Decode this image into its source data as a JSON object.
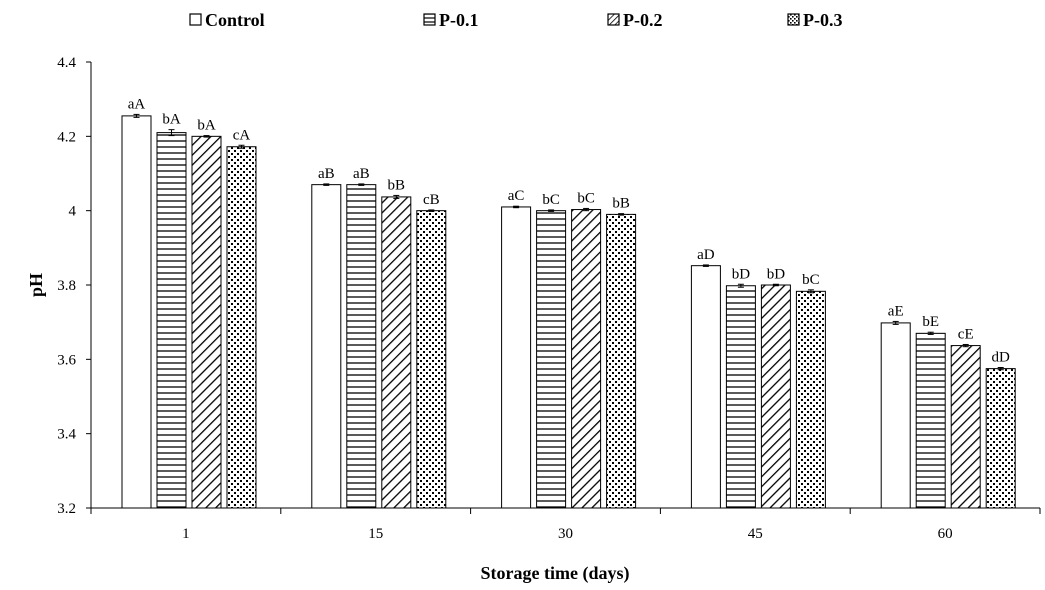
{
  "chart_data": {
    "type": "bar",
    "title": "",
    "xlabel": "Storage time (days)",
    "ylabel": "pH",
    "ylim": [
      3.2,
      4.4
    ],
    "yticks": [
      3.2,
      3.4,
      3.6,
      3.8,
      4,
      4.2,
      4.4
    ],
    "ytick_labels": [
      "3.2",
      "3.4",
      "3.6",
      "3.8",
      "4",
      "4.2",
      "4.4"
    ],
    "categories": [
      "1",
      "15",
      "30",
      "45",
      "60"
    ],
    "legend_position": "top",
    "grid": false,
    "series": [
      {
        "name": "Control",
        "pattern": "solid-white",
        "values": [
          4.255,
          4.07,
          4.01,
          3.852,
          3.698
        ],
        "errors": [
          0.004,
          0.002,
          0.002,
          0.002,
          0.004
        ],
        "letters": [
          "aA",
          "aB",
          "aC",
          "aD",
          "aE"
        ]
      },
      {
        "name": "P-0.1",
        "pattern": "horizontal-lines",
        "values": [
          4.21,
          4.07,
          4.0,
          3.798,
          3.67
        ],
        "errors": [
          0.008,
          0.002,
          0.002,
          0.004,
          0.003
        ],
        "letters": [
          "bA",
          "aB",
          "bC",
          "bD",
          "bE"
        ]
      },
      {
        "name": "P-0.2",
        "pattern": "diagonal-lines",
        "values": [
          4.2,
          4.037,
          4.003,
          3.8,
          3.637
        ],
        "errors": [
          0.002,
          0.004,
          0.003,
          0.002,
          0.003
        ],
        "letters": [
          "bA",
          "bB",
          "bC",
          "bD",
          "cE"
        ]
      },
      {
        "name": "P-0.3",
        "pattern": "dots",
        "values": [
          4.172,
          4.0,
          3.99,
          3.783,
          3.575
        ],
        "errors": [
          0.004,
          0.002,
          0.002,
          0.004,
          0.003
        ],
        "letters": [
          "cA",
          "cB",
          "bB",
          "bC",
          "dD"
        ]
      }
    ]
  },
  "colors": {
    "bar_stroke": "#000000",
    "bar_fill": "#ffffff",
    "axis": "#000000"
  }
}
